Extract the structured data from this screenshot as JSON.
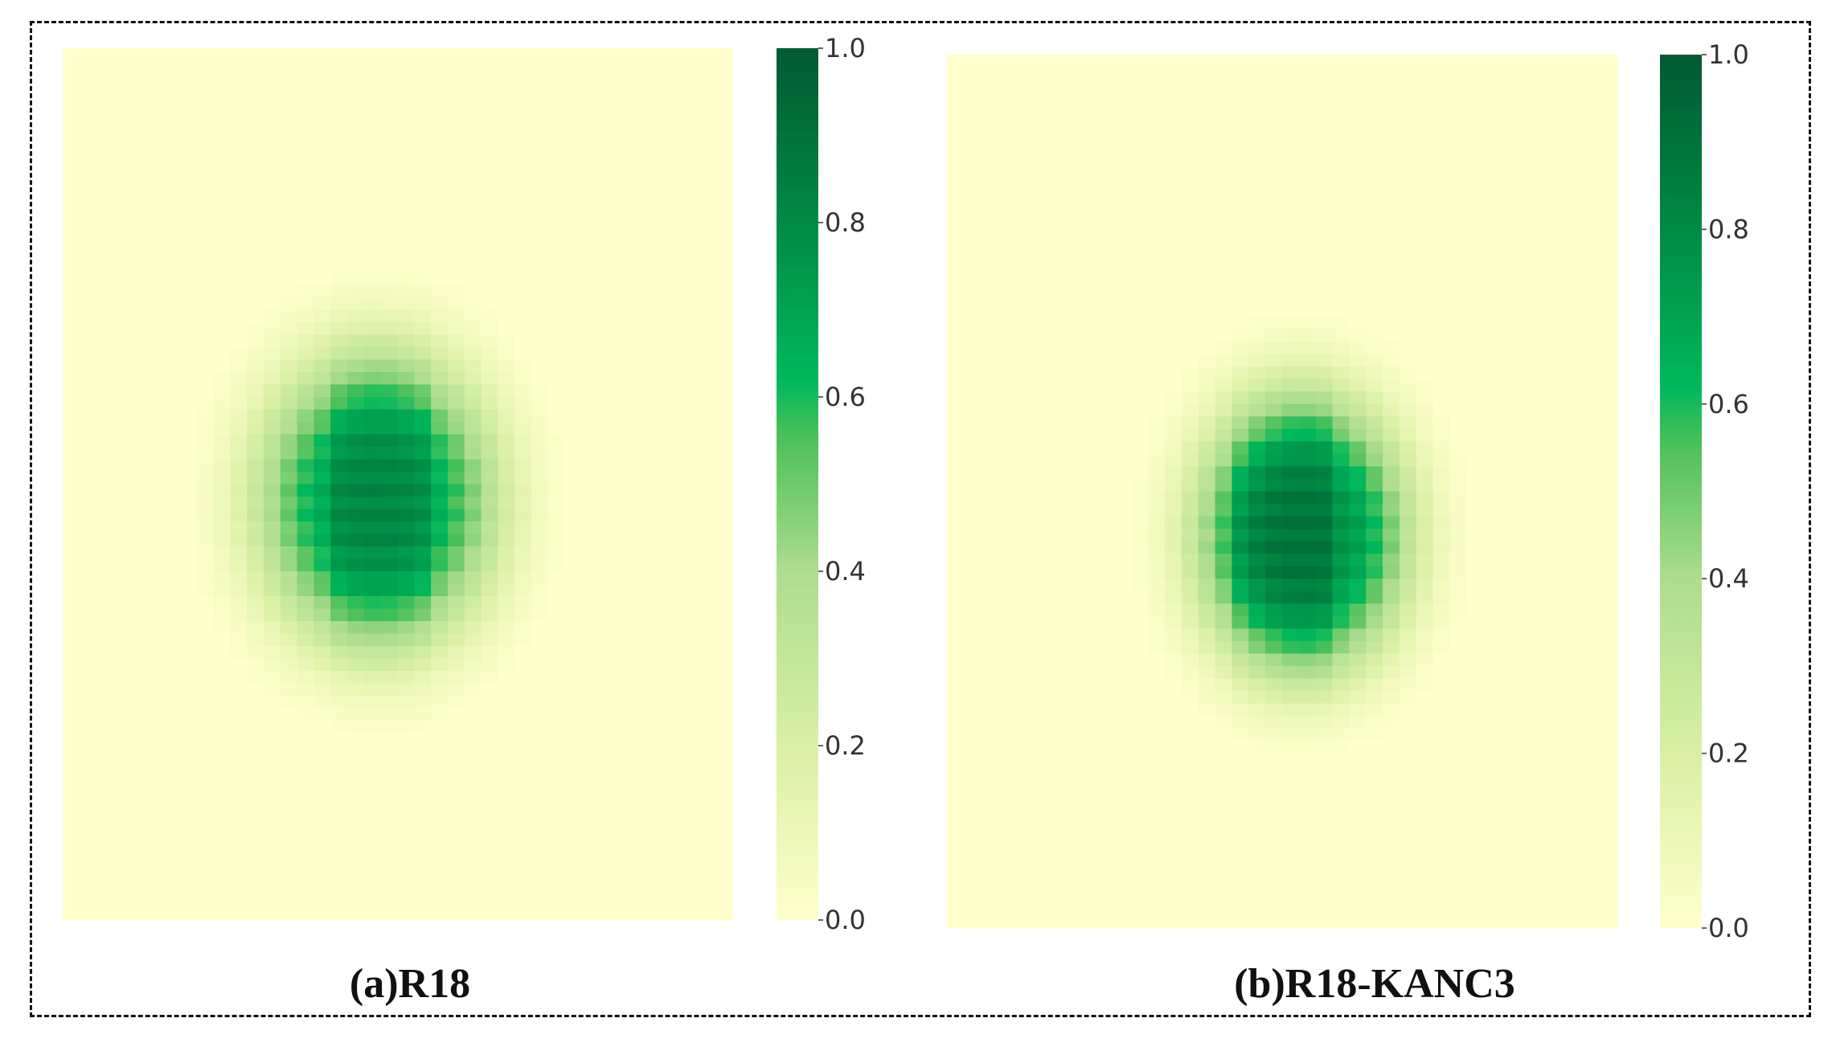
{
  "figure": {
    "captions": [
      "(a)R18",
      "(b)R18-KANC3"
    ]
  },
  "colorbar": {
    "ticks": [
      "0.0",
      "0.2",
      "0.4",
      "0.6",
      "0.8",
      "1.0"
    ],
    "stops": [
      {
        "v": 0.0,
        "color": "#ffffcc"
      },
      {
        "v": 0.2,
        "color": "#d9f0a3"
      },
      {
        "v": 0.4,
        "color": "#addd8e"
      },
      {
        "v": 0.55,
        "color": "#4fc15a"
      },
      {
        "v": 0.62,
        "color": "#00b85c"
      },
      {
        "v": 0.8,
        "color": "#008a44"
      },
      {
        "v": 1.0,
        "color": "#005a32"
      }
    ]
  },
  "chart_data": [
    {
      "type": "heatmap",
      "title": "(a)R18",
      "colormap": "YlGn",
      "vmin": 0.0,
      "vmax": 1.0,
      "colorbar_ticks": [
        0.0,
        0.2,
        0.4,
        0.6,
        0.8,
        1.0
      ],
      "peak_value": 0.75,
      "peak_center": [
        0.47,
        0.52
      ],
      "spread": [
        0.18,
        0.18
      ],
      "columns_band": [
        0.41,
        0.56
      ]
    },
    {
      "type": "heatmap",
      "title": "(b)R18-KANC3",
      "colormap": "YlGn",
      "vmin": 0.0,
      "vmax": 1.0,
      "colorbar_ticks": [
        0.0,
        0.2,
        0.4,
        0.6,
        0.8,
        1.0
      ],
      "peak_value": 0.82,
      "peak_center": [
        0.53,
        0.55
      ],
      "spread": [
        0.16,
        0.17
      ],
      "columns_band": [
        0.42,
        0.58
      ]
    }
  ]
}
